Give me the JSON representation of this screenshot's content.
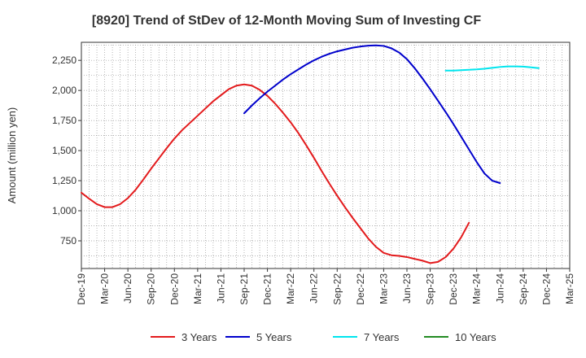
{
  "chart_data": {
    "type": "line",
    "title": "[8920]  Trend of StDev of 12-Month Moving Sum of Investing CF",
    "ylabel": "Amount (million yen)",
    "xlabel": "",
    "x_ticks": [
      "Dec-19",
      "Mar-20",
      "Jun-20",
      "Sep-20",
      "Dec-20",
      "Mar-21",
      "Jun-21",
      "Sep-21",
      "Dec-21",
      "Mar-22",
      "Jun-22",
      "Sep-22",
      "Dec-22",
      "Mar-23",
      "Jun-23",
      "Sep-23",
      "Dec-23",
      "Mar-24",
      "Jun-24",
      "Sep-24",
      "Dec-24",
      "Mar-25"
    ],
    "y_ticks": [
      "750",
      "1,000",
      "1,250",
      "1,500",
      "1,750",
      "2,000",
      "2,250"
    ],
    "ylim": [
      520,
      2400
    ],
    "grid": true,
    "legend_position": "bottom",
    "series": [
      {
        "name": "3 Years",
        "color": "#e31a1c",
        "start_index": 0,
        "values": [
          1150,
          1100,
          1055,
          1030,
          1030,
          1055,
          1105,
          1175,
          1260,
          1350,
          1435,
          1520,
          1600,
          1670,
          1730,
          1790,
          1850,
          1910,
          1960,
          2010,
          2040,
          2050,
          2040,
          2005,
          1955,
          1890,
          1815,
          1735,
          1645,
          1545,
          1440,
          1330,
          1225,
          1125,
          1030,
          940,
          855,
          770,
          700,
          650,
          630,
          625,
          615,
          600,
          585,
          565,
          575,
          615,
          685,
          780,
          900
        ]
      },
      {
        "name": "5 Years",
        "color": "#0000cc",
        "start_index": 21,
        "values": [
          1810,
          1875,
          1935,
          1990,
          2040,
          2090,
          2135,
          2175,
          2215,
          2250,
          2280,
          2305,
          2325,
          2340,
          2355,
          2365,
          2372,
          2375,
          2370,
          2350,
          2315,
          2260,
          2185,
          2100,
          2010,
          1915,
          1820,
          1720,
          1615,
          1510,
          1405,
          1310,
          1250,
          1230
        ]
      },
      {
        "name": "7 Years",
        "color": "#00e5ee",
        "start_index": 47,
        "values": [
          2165,
          2165,
          2168,
          2172,
          2175,
          2180,
          2188,
          2195,
          2200,
          2200,
          2198,
          2192,
          2185
        ]
      },
      {
        "name": "10 Years",
        "color": "#228b22",
        "start_index": 0,
        "values": []
      }
    ]
  }
}
